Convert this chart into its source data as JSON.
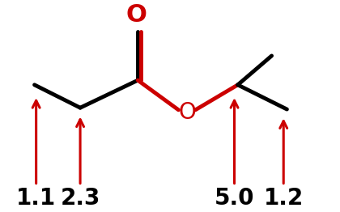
{
  "bg_color": "#ffffff",
  "bond_color": "#000000",
  "highlight_color": "#cc0000",
  "arrow_color": "#cc0000",
  "label_color": "#000000",
  "labels": [
    "1.1",
    "2.3",
    "5.0",
    "1.2"
  ],
  "label_fontsize": 20,
  "label_fontweight": "bold",
  "arrow_lw": 2.2,
  "bond_lw": 3.5,
  "O_double_fontsize": 22,
  "O_ester_fontsize": 20
}
